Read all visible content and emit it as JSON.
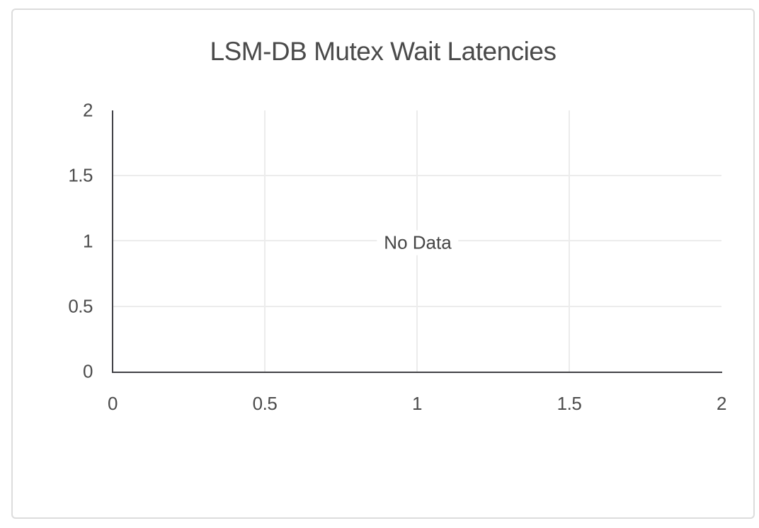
{
  "card": {
    "title": "LSM-DB Mutex Wait Latencies"
  },
  "chart_data": {
    "type": "line",
    "title": "LSM-DB Mutex Wait Latencies",
    "series": [],
    "empty_message": "No Data",
    "xlabel": "",
    "ylabel": "",
    "xlim": [
      0,
      2
    ],
    "ylim": [
      0,
      2
    ],
    "x_ticks": [
      "0",
      "0.5",
      "1",
      "1.5",
      "2"
    ],
    "y_ticks": [
      "2",
      "1.5",
      "1",
      "0.5",
      "0"
    ],
    "grid": true,
    "legend_position": "none"
  },
  "colors": {
    "background": "#ffffff",
    "card_border": "#dcdcdc",
    "axis_line": "#414146",
    "gridline": "#ececec",
    "title_text": "#4a4a4a",
    "tick_text": "#4c4c4c",
    "no_data_text": "#454545"
  }
}
